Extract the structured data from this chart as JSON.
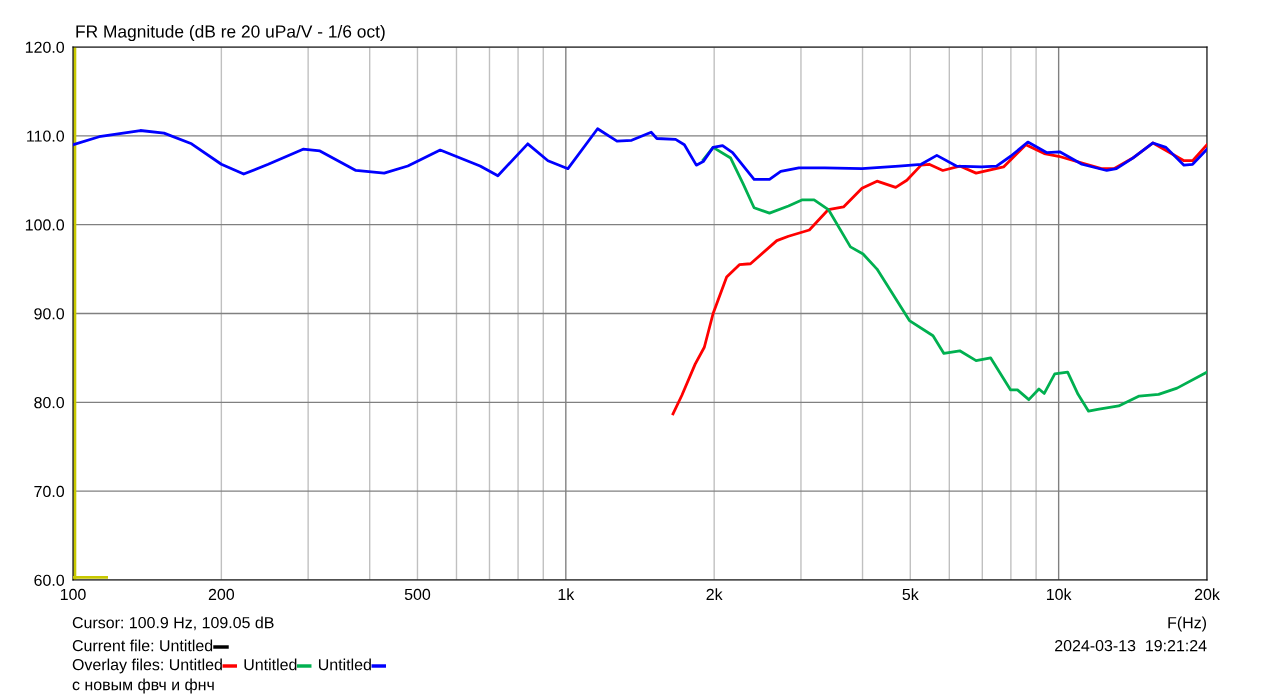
{
  "chart_data": {
    "type": "line",
    "title": "FR Magnitude (dB re 20 uPa/V - 1/6 oct)",
    "xlabel": "F(Hz)",
    "log": "x",
    "grid": true,
    "legend": "bottom left",
    "legend_title": "Overlay files:",
    "marker": "none",
    "line_style": "solid",
    "xlim": [
      100,
      20000
    ],
    "ylim": [
      60,
      120
    ],
    "xticks": [
      {
        "value": 100,
        "label": "100"
      },
      {
        "value": 200,
        "label": "200"
      },
      {
        "value": 300,
        "label": null
      },
      {
        "value": 400,
        "label": null
      },
      {
        "value": 500,
        "label": "500"
      },
      {
        "value": 600,
        "label": null
      },
      {
        "value": 700,
        "label": null
      },
      {
        "value": 800,
        "label": null
      },
      {
        "value": 900,
        "label": null
      },
      {
        "value": 1000,
        "label": "1k"
      },
      {
        "value": 2000,
        "label": "2k"
      },
      {
        "value": 3000,
        "label": null
      },
      {
        "value": 4000,
        "label": null
      },
      {
        "value": 5000,
        "label": "5k"
      },
      {
        "value": 6000,
        "label": null
      },
      {
        "value": 7000,
        "label": null
      },
      {
        "value": 8000,
        "label": null
      },
      {
        "value": 9000,
        "label": null
      },
      {
        "value": 10000,
        "label": "10k"
      },
      {
        "value": 20000,
        "label": "20k"
      }
    ],
    "yticks": [
      {
        "value": 60,
        "label": "60.0"
      },
      {
        "value": 70,
        "label": "70.0"
      },
      {
        "value": 80,
        "label": "80.0"
      },
      {
        "value": 90,
        "label": "90.0"
      },
      {
        "value": 100,
        "label": "100.0"
      },
      {
        "value": 110,
        "label": "110.0"
      },
      {
        "value": 120,
        "label": "120.0"
      }
    ],
    "ref_lines": [
      {
        "axis": "x",
        "value": 100.9,
        "color": "#c8c800"
      }
    ],
    "annotations": [
      "Cursor: 100.9 Hz, 109.05 dB",
      "Current file: Untitled",
      "2024-03-13  19:21:24",
      "с новым фвч и фнч"
    ],
    "series": [
      {
        "color": "#c8c800",
        "x": [
          100,
          117
        ],
        "values": [
          60.3,
          60.3
        ]
      },
      {
        "name": "Untitled",
        "color": "#ff0000",
        "x": [
          1650,
          1720,
          1830,
          1910,
          1990,
          2120,
          2250,
          2370,
          2680,
          2830,
          3120,
          3410,
          3660,
          3990,
          4280,
          4670,
          4920,
          5260,
          5460,
          5820,
          6300,
          6800,
          7730,
          8580,
          9350,
          10000,
          12210,
          12950,
          14140,
          15540,
          17960,
          18700,
          20000
        ],
        "values": [
          78.7,
          80.8,
          84.3,
          86.2,
          90.0,
          94.1,
          95.5,
          95.6,
          98.2,
          98.7,
          99.4,
          101.7,
          102.0,
          104.1,
          104.9,
          104.2,
          105.0,
          106.7,
          106.8,
          106.1,
          106.6,
          105.8,
          106.5,
          109.0,
          108.0,
          107.7,
          106.3,
          106.3,
          107.5,
          109.2,
          107.2,
          107.2,
          109.0
        ]
      },
      {
        "name": "Untitled",
        "color": "#00b050",
        "x": [
          1900,
          1990,
          2160,
          2290,
          2410,
          2590,
          2830,
          3020,
          3190,
          3410,
          3780,
          4010,
          4280,
          4980,
          5560,
          5850,
          6300,
          6800,
          7280,
          7990,
          8250,
          8700,
          9120,
          9350,
          9820,
          10430,
          10950,
          11500,
          12000,
          13240,
          14570,
          15950,
          17390,
          20000
        ],
        "values": [
          107.3,
          108.7,
          107.5,
          104.6,
          101.9,
          101.3,
          102.1,
          102.8,
          102.8,
          101.7,
          97.5,
          96.7,
          95.0,
          89.2,
          87.5,
          85.5,
          85.8,
          84.7,
          85.0,
          81.4,
          81.4,
          80.3,
          81.5,
          81.0,
          83.2,
          83.4,
          80.9,
          79.0,
          79.2,
          79.6,
          80.7,
          80.9,
          81.6,
          83.4
        ]
      },
      {
        "name": "Untitled",
        "color": "#0000ff",
        "x": [
          100,
          113,
          137,
          153,
          174,
          200,
          222,
          249,
          293,
          317,
          375,
          428,
          478,
          556,
          670,
          728,
          837,
          920,
          1010,
          1160,
          1270,
          1360,
          1490,
          1530,
          1670,
          1740,
          1840,
          1900,
          1990,
          2080,
          2180,
          2410,
          2590,
          2730,
          2970,
          3350,
          3990,
          4740,
          5260,
          5660,
          6200,
          6970,
          7480,
          7990,
          8660,
          9470,
          10050,
          11150,
          12520,
          13100,
          14140,
          15540,
          16510,
          17960,
          18700,
          20000
        ],
        "values": [
          109.0,
          109.9,
          110.6,
          110.3,
          109.1,
          106.8,
          105.7,
          106.8,
          108.5,
          108.3,
          106.1,
          105.8,
          106.6,
          108.4,
          106.6,
          105.5,
          109.1,
          107.2,
          106.3,
          110.8,
          109.4,
          109.5,
          110.4,
          109.7,
          109.6,
          109.0,
          106.7,
          107.1,
          108.7,
          108.9,
          108.1,
          105.1,
          105.1,
          106.0,
          106.4,
          106.4,
          106.3,
          106.6,
          106.8,
          107.8,
          106.6,
          106.5,
          106.6,
          107.7,
          109.3,
          108.1,
          108.2,
          106.8,
          106.1,
          106.3,
          107.5,
          109.2,
          108.7,
          106.7,
          106.8,
          108.5
        ]
      }
    ]
  }
}
